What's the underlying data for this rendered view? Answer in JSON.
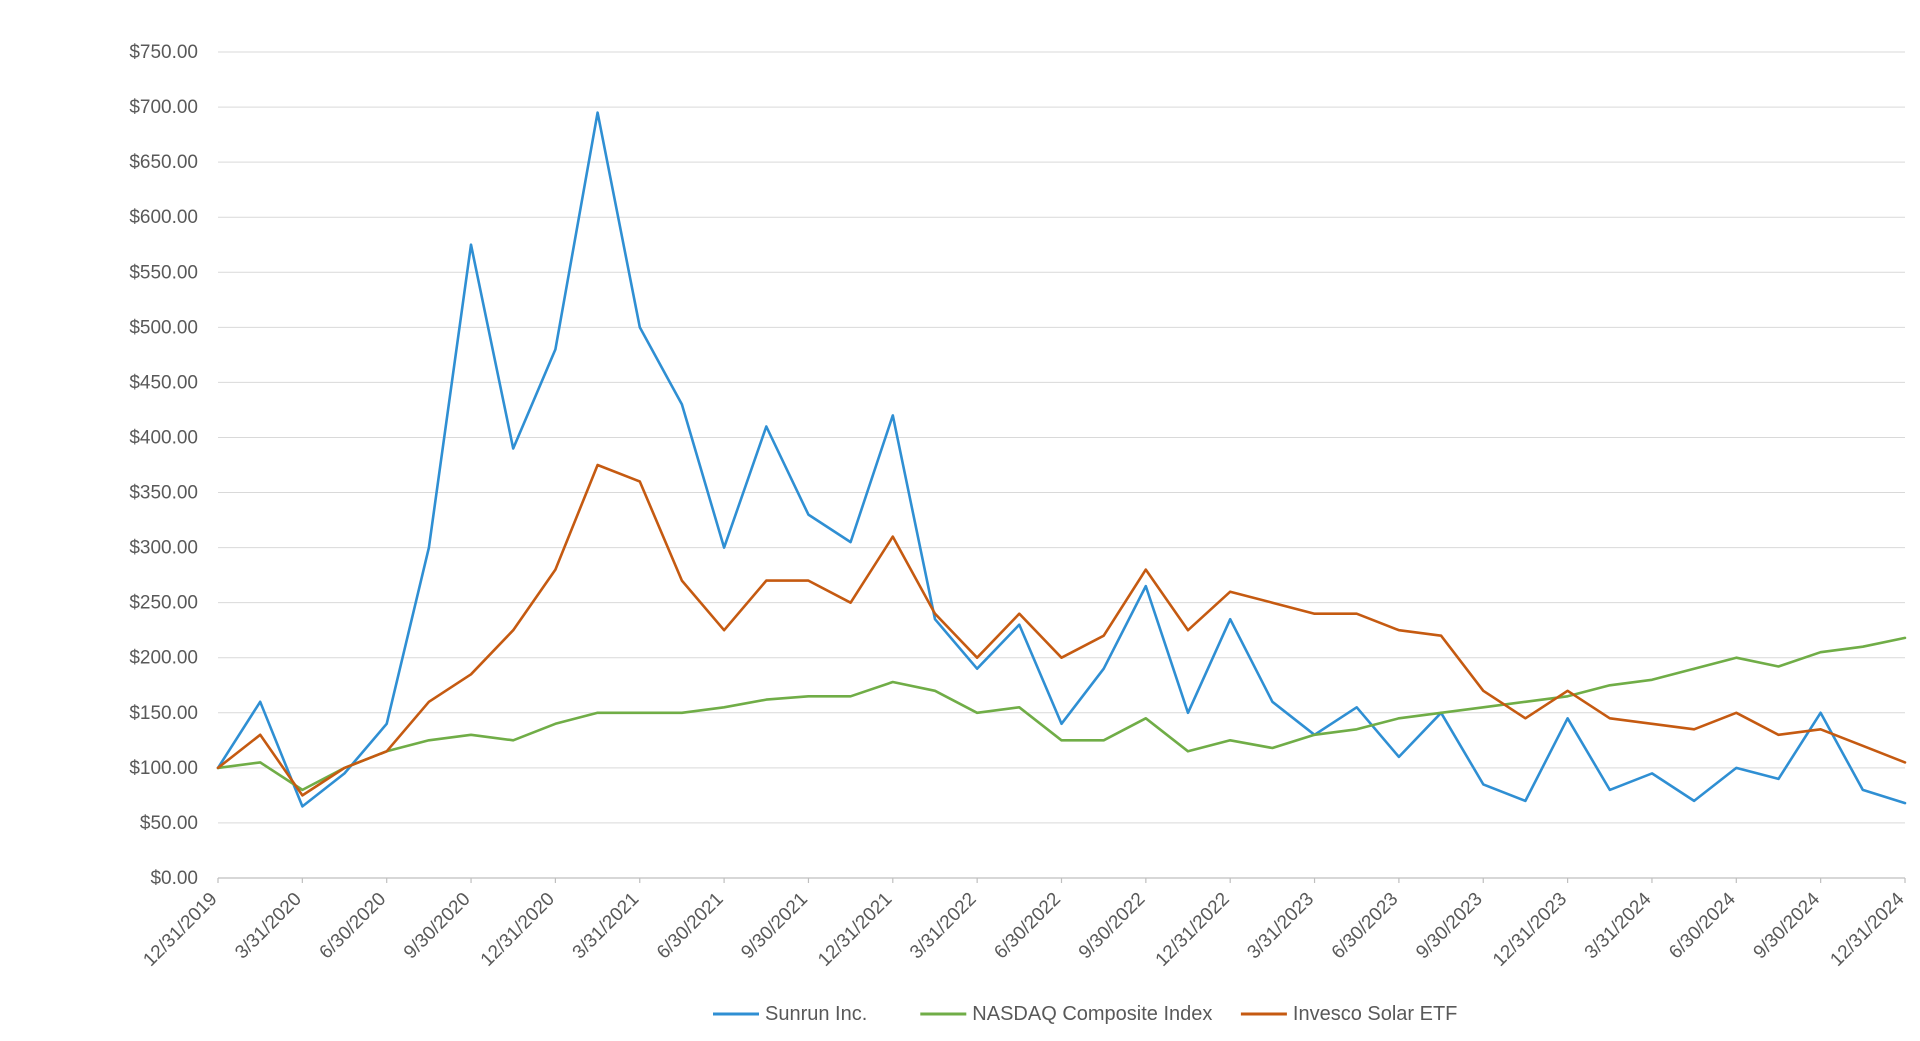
{
  "chart_data": {
    "type": "line",
    "title": "",
    "xlabel": "",
    "ylabel": "",
    "ylim": [
      0,
      750
    ],
    "y_ticks": [
      "$0.00",
      "$50.00",
      "$100.00",
      "$150.00",
      "$200.00",
      "$250.00",
      "$300.00",
      "$350.00",
      "$400.00",
      "$450.00",
      "$500.00",
      "$550.00",
      "$600.00",
      "$650.00",
      "$700.00",
      "$750.00"
    ],
    "y_tick_values": [
      0,
      50,
      100,
      150,
      200,
      250,
      300,
      350,
      400,
      450,
      500,
      550,
      600,
      650,
      700,
      750
    ],
    "x_ticks": [
      "12/31/2019",
      "3/31/2020",
      "6/30/2020",
      "9/30/2020",
      "12/31/2020",
      "3/31/2021",
      "6/30/2021",
      "9/30/2021",
      "12/31/2021",
      "3/31/2022",
      "6/30/2022",
      "9/30/2022",
      "12/31/2022",
      "3/31/2023",
      "6/30/2023",
      "9/30/2023",
      "12/31/2023",
      "3/31/2024",
      "6/30/2024",
      "9/30/2024",
      "12/31/2024"
    ],
    "grid": true,
    "legend_position": "bottom",
    "x": [
      0,
      0.5,
      1,
      1.5,
      2,
      2.5,
      3,
      3.5,
      4,
      4.5,
      5,
      5.5,
      6,
      6.5,
      7,
      7.5,
      8,
      8.5,
      9,
      9.5,
      10,
      10.5,
      11,
      11.5,
      12,
      12.5,
      13,
      13.5,
      14,
      14.5,
      15,
      15.5,
      16,
      16.5,
      17,
      17.5,
      18,
      18.5,
      19,
      19.5,
      20
    ],
    "series": [
      {
        "name": "Sunrun Inc.",
        "color": "#2f8fd3",
        "values": [
          100,
          160,
          65,
          95,
          140,
          300,
          575,
          390,
          480,
          695,
          500,
          430,
          300,
          410,
          330,
          305,
          420,
          235,
          190,
          230,
          140,
          190,
          265,
          150,
          235,
          160,
          130,
          155,
          110,
          150,
          85,
          70,
          145,
          80,
          95,
          70,
          100,
          90,
          150,
          80,
          68
        ]
      },
      {
        "name": "NASDAQ Composite Index",
        "color": "#70ad47",
        "values": [
          100,
          105,
          80,
          100,
          115,
          125,
          130,
          125,
          140,
          150,
          150,
          150,
          155,
          162,
          165,
          165,
          178,
          170,
          150,
          155,
          125,
          125,
          145,
          115,
          125,
          118,
          130,
          135,
          145,
          150,
          155,
          160,
          165,
          175,
          180,
          190,
          200,
          192,
          205,
          210,
          218
        ]
      },
      {
        "name": "Invesco Solar ETF",
        "color": "#c55a11",
        "values": [
          100,
          130,
          75,
          100,
          115,
          160,
          185,
          225,
          280,
          375,
          360,
          270,
          225,
          270,
          270,
          250,
          310,
          240,
          200,
          240,
          200,
          220,
          280,
          225,
          260,
          250,
          240,
          240,
          225,
          220,
          170,
          145,
          170,
          145,
          140,
          135,
          150,
          130,
          135,
          120,
          105
        ]
      }
    ]
  }
}
